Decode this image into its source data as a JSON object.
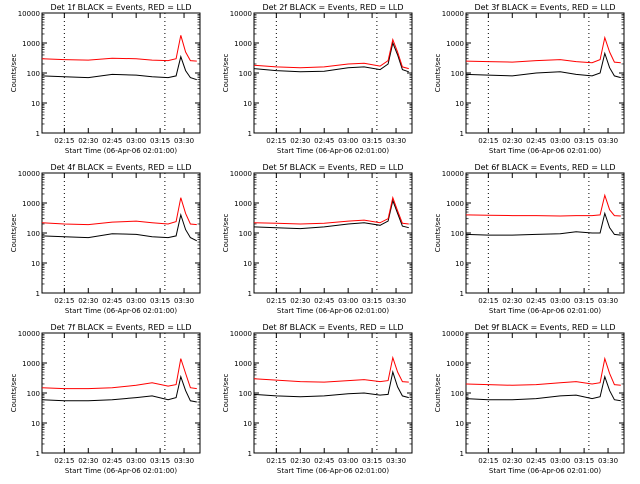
{
  "x_tick_labels": [
    "02:15",
    "02:30",
    "02:45",
    "03:00",
    "03:15",
    "03:30"
  ],
  "y_tick_labels": [
    "1",
    "10",
    "100",
    "1000",
    "10000"
  ],
  "ylabel": "Counts/sec",
  "xlabel": "Start Time (06-Apr-06 02:01:00)",
  "colors": {
    "events": "#000000",
    "lld": "#ff0000"
  },
  "chart_data": [
    {
      "type": "line",
      "title": "Det 1f BLACK = Events, RED = LLD",
      "xlim": [
        "02:01",
        "03:40"
      ],
      "ylim": [
        1,
        10000
      ],
      "y_scale": "log",
      "series": [
        {
          "color": "#000000",
          "x": [
            "02:01",
            "02:15",
            "02:30",
            "02:45",
            "03:00",
            "03:10",
            "03:20",
            "03:25",
            "03:28",
            "03:31",
            "03:34",
            "03:38"
          ],
          "y": [
            80,
            75,
            70,
            90,
            85,
            75,
            70,
            80,
            350,
            120,
            70,
            60
          ]
        },
        {
          "color": "#ff0000",
          "x": [
            "02:01",
            "02:15",
            "02:30",
            "02:45",
            "03:00",
            "03:10",
            "03:20",
            "03:25",
            "03:28",
            "03:31",
            "03:34",
            "03:38"
          ],
          "y": [
            300,
            280,
            270,
            310,
            300,
            270,
            260,
            300,
            1800,
            500,
            260,
            250
          ]
        }
      ]
    },
    {
      "type": "line",
      "title": "Det 2f BLACK = Events, RED = LLD",
      "xlim": [
        "02:01",
        "03:40"
      ],
      "ylim": [
        1,
        10000
      ],
      "y_scale": "log",
      "series": [
        {
          "color": "#000000",
          "x": [
            "02:01",
            "02:15",
            "02:30",
            "02:45",
            "03:00",
            "03:10",
            "03:20",
            "03:25",
            "03:28",
            "03:31",
            "03:34",
            "03:38"
          ],
          "y": [
            140,
            120,
            110,
            115,
            150,
            160,
            130,
            200,
            1000,
            400,
            130,
            110
          ]
        },
        {
          "color": "#ff0000",
          "x": [
            "02:01",
            "02:15",
            "02:30",
            "02:45",
            "03:00",
            "03:10",
            "03:20",
            "03:25",
            "03:28",
            "03:31",
            "03:34",
            "03:38"
          ],
          "y": [
            180,
            160,
            150,
            160,
            200,
            210,
            170,
            260,
            1300,
            500,
            160,
            140
          ]
        }
      ]
    },
    {
      "type": "line",
      "title": "Det 3f BLACK = Events, RED = LLD",
      "xlim": [
        "02:01",
        "03:40"
      ],
      "ylim": [
        1,
        10000
      ],
      "y_scale": "log",
      "series": [
        {
          "color": "#000000",
          "x": [
            "02:01",
            "02:15",
            "02:30",
            "02:45",
            "03:00",
            "03:10",
            "03:20",
            "03:25",
            "03:28",
            "03:31",
            "03:34",
            "03:38"
          ],
          "y": [
            90,
            85,
            80,
            100,
            110,
            90,
            80,
            100,
            450,
            150,
            80,
            70
          ]
        },
        {
          "color": "#ff0000",
          "x": [
            "02:01",
            "02:15",
            "02:30",
            "02:45",
            "03:00",
            "03:10",
            "03:20",
            "03:25",
            "03:28",
            "03:31",
            "03:34",
            "03:38"
          ],
          "y": [
            250,
            240,
            230,
            260,
            280,
            240,
            220,
            280,
            1500,
            500,
            230,
            220
          ]
        }
      ]
    },
    {
      "type": "line",
      "title": "Det 4f BLACK = Events, RED = LLD",
      "xlim": [
        "02:01",
        "03:40"
      ],
      "ylim": [
        1,
        10000
      ],
      "y_scale": "log",
      "series": [
        {
          "color": "#000000",
          "x": [
            "02:01",
            "02:15",
            "02:30",
            "02:45",
            "03:00",
            "03:10",
            "03:20",
            "03:25",
            "03:28",
            "03:31",
            "03:34",
            "03:38"
          ],
          "y": [
            80,
            75,
            70,
            95,
            90,
            75,
            70,
            80,
            400,
            130,
            70,
            55
          ]
        },
        {
          "color": "#ff0000",
          "x": [
            "02:01",
            "02:15",
            "02:30",
            "02:45",
            "03:00",
            "03:10",
            "03:20",
            "03:25",
            "03:28",
            "03:31",
            "03:34",
            "03:38"
          ],
          "y": [
            220,
            200,
            190,
            230,
            250,
            220,
            200,
            240,
            1500,
            450,
            200,
            190
          ]
        }
      ]
    },
    {
      "type": "line",
      "title": "Det 5f BLACK = Events, RED = LLD",
      "xlim": [
        "02:01",
        "03:40"
      ],
      "ylim": [
        1,
        10000
      ],
      "y_scale": "log",
      "series": [
        {
          "color": "#000000",
          "x": [
            "02:01",
            "02:15",
            "02:30",
            "02:45",
            "03:00",
            "03:10",
            "03:20",
            "03:25",
            "03:28",
            "03:31",
            "03:34",
            "03:38"
          ],
          "y": [
            160,
            150,
            140,
            160,
            200,
            220,
            180,
            250,
            1200,
            450,
            170,
            150
          ]
        },
        {
          "color": "#ff0000",
          "x": [
            "02:01",
            "02:15",
            "02:30",
            "02:45",
            "03:00",
            "03:10",
            "03:20",
            "03:25",
            "03:28",
            "03:31",
            "03:34",
            "03:38"
          ],
          "y": [
            220,
            210,
            200,
            210,
            250,
            270,
            220,
            300,
            1500,
            550,
            210,
            200
          ]
        }
      ]
    },
    {
      "type": "line",
      "title": "Det 6f BLACK = Events, RED = LLD",
      "xlim": [
        "02:01",
        "03:40"
      ],
      "ylim": [
        1,
        10000
      ],
      "y_scale": "log",
      "series": [
        {
          "color": "#000000",
          "x": [
            "02:01",
            "02:15",
            "02:30",
            "02:45",
            "03:00",
            "03:10",
            "03:20",
            "03:25",
            "03:28",
            "03:31",
            "03:34",
            "03:38"
          ],
          "y": [
            90,
            85,
            85,
            90,
            95,
            110,
            100,
            100,
            450,
            150,
            90,
            85
          ]
        },
        {
          "color": "#ff0000",
          "x": [
            "02:01",
            "02:15",
            "02:30",
            "02:45",
            "03:00",
            "03:10",
            "03:20",
            "03:25",
            "03:28",
            "03:31",
            "03:34",
            "03:38"
          ],
          "y": [
            400,
            390,
            380,
            380,
            370,
            380,
            380,
            400,
            1800,
            600,
            380,
            370
          ]
        }
      ]
    },
    {
      "type": "line",
      "title": "Det 7f BLACK = Events, RED = LLD",
      "xlim": [
        "02:01",
        "03:40"
      ],
      "ylim": [
        1,
        10000
      ],
      "y_scale": "log",
      "series": [
        {
          "color": "#000000",
          "x": [
            "02:01",
            "02:15",
            "02:30",
            "02:45",
            "03:00",
            "03:10",
            "03:20",
            "03:25",
            "03:28",
            "03:31",
            "03:34",
            "03:38"
          ],
          "y": [
            60,
            55,
            55,
            60,
            70,
            80,
            60,
            70,
            350,
            120,
            55,
            50
          ]
        },
        {
          "color": "#ff0000",
          "x": [
            "02:01",
            "02:15",
            "02:30",
            "02:45",
            "03:00",
            "03:10",
            "03:20",
            "03:25",
            "03:28",
            "03:31",
            "03:34",
            "03:38"
          ],
          "y": [
            150,
            140,
            140,
            150,
            180,
            220,
            170,
            190,
            1400,
            450,
            150,
            140
          ]
        }
      ]
    },
    {
      "type": "line",
      "title": "Det 8f BLACK = Events, RED = LLD",
      "xlim": [
        "02:01",
        "03:40"
      ],
      "ylim": [
        1,
        10000
      ],
      "y_scale": "log",
      "series": [
        {
          "color": "#000000",
          "x": [
            "02:01",
            "02:15",
            "02:30",
            "02:45",
            "03:00",
            "03:10",
            "03:20",
            "03:25",
            "03:28",
            "03:31",
            "03:34",
            "03:38"
          ],
          "y": [
            90,
            80,
            75,
            80,
            95,
            100,
            85,
            90,
            500,
            160,
            80,
            70
          ]
        },
        {
          "color": "#ff0000",
          "x": [
            "02:01",
            "02:15",
            "02:30",
            "02:45",
            "03:00",
            "03:10",
            "03:20",
            "03:25",
            "03:28",
            "03:31",
            "03:34",
            "03:38"
          ],
          "y": [
            300,
            270,
            240,
            230,
            260,
            280,
            240,
            260,
            1500,
            500,
            240,
            230
          ]
        }
      ]
    },
    {
      "type": "line",
      "title": "Det 9f BLACK = Events, RED = LLD",
      "xlim": [
        "02:01",
        "03:40"
      ],
      "ylim": [
        1,
        10000
      ],
      "y_scale": "log",
      "series": [
        {
          "color": "#000000",
          "x": [
            "02:01",
            "02:15",
            "02:30",
            "02:45",
            "03:00",
            "03:10",
            "03:20",
            "03:25",
            "03:28",
            "03:31",
            "03:34",
            "03:38"
          ],
          "y": [
            65,
            60,
            60,
            65,
            80,
            85,
            65,
            75,
            350,
            120,
            60,
            55
          ]
        },
        {
          "color": "#ff0000",
          "x": [
            "02:01",
            "02:15",
            "02:30",
            "02:45",
            "03:00",
            "03:10",
            "03:20",
            "03:25",
            "03:28",
            "03:31",
            "03:34",
            "03:38"
          ],
          "y": [
            200,
            190,
            180,
            190,
            220,
            240,
            200,
            220,
            1400,
            450,
            190,
            180
          ]
        }
      ]
    }
  ]
}
